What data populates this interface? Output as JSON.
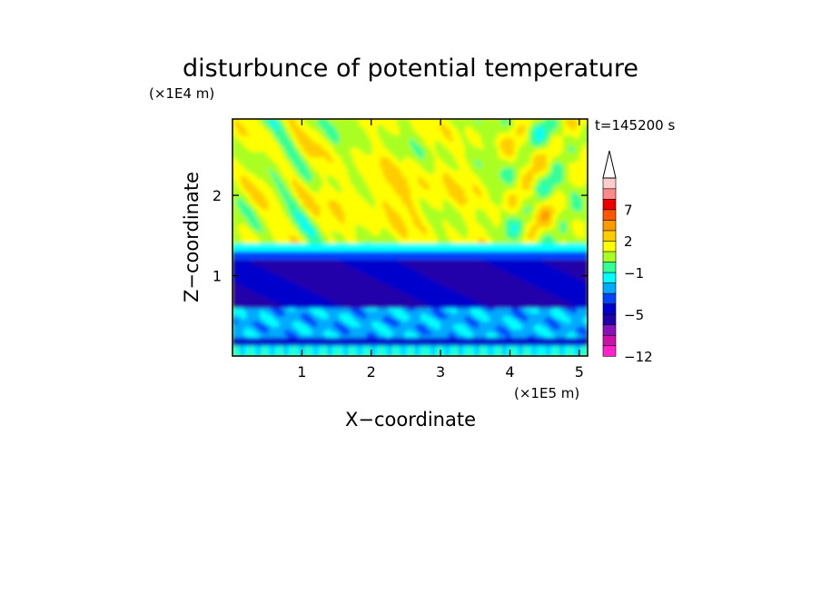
{
  "chart_data": {
    "type": "heatmap",
    "title": "disturbunce of potential temperature",
    "time_label": "t=145200 s",
    "xlabel": "X−coordinate",
    "ylabel": "Z−coordinate",
    "x_unit": "(×1E5 m)",
    "y_unit": "(×1E4 m)",
    "xlim": [
      0,
      5.12
    ],
    "ylim": [
      0,
      2.95
    ],
    "x_ticks": [
      1,
      2,
      3,
      4,
      5
    ],
    "x_tick_labels": [
      "1",
      "2",
      "3",
      "4",
      "5"
    ],
    "y_ticks": [
      1,
      2
    ],
    "y_tick_labels": [
      "1",
      "2"
    ],
    "colorbar": {
      "levels": [
        -12,
        -11,
        -9,
        -7,
        -5,
        -4,
        -3,
        -2,
        -1,
        0,
        1,
        2,
        3,
        5,
        7,
        9,
        11
      ],
      "colors": [
        "#ff22cc",
        "#cc11aa",
        "#8811bb",
        "#2200aa",
        "#0000cc",
        "#0044ff",
        "#00aaff",
        "#00ffff",
        "#33ff99",
        "#aaff22",
        "#ffff00",
        "#ffcc00",
        "#ff9900",
        "#ff5500",
        "#ee0000",
        "#ff8888",
        "#ffcccc"
      ],
      "extend": "max",
      "tick_values": [
        -12,
        -5,
        -1,
        2,
        7
      ],
      "tick_labels": [
        "−12",
        "−5",
        "−1",
        "2",
        "7"
      ]
    },
    "grid": false
  }
}
